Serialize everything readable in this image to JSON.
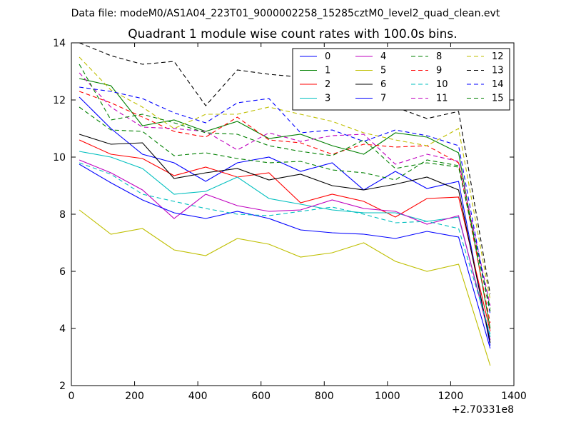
{
  "chart_data": {
    "type": "line",
    "suptitle": "Data file: modeM0/AS1A04_223T01_9000002258_15285cztM0_level2_quad_clean.evt",
    "title": "Quadrant 1 module wise count rates with 100.0s bins.",
    "xlabel": "",
    "ylabel": "",
    "x_offset_label": "+2.70331e8",
    "xlim": [
      0,
      1400
    ],
    "ylim": [
      2,
      14
    ],
    "xticks": [
      0,
      200,
      400,
      600,
      800,
      1000,
      1200,
      1400
    ],
    "yticks": [
      2,
      4,
      6,
      8,
      10,
      12,
      14
    ],
    "x": [
      25,
      125,
      225,
      325,
      425,
      525,
      625,
      725,
      825,
      925,
      1025,
      1125,
      1225,
      1325
    ],
    "series": [
      {
        "name": "0",
        "color": "#0000ff",
        "style": "solid",
        "values": [
          12.1,
          11.0,
          10.1,
          9.8,
          9.15,
          9.8,
          10.0,
          9.5,
          9.8,
          8.85,
          9.5,
          8.9,
          9.15,
          3.4
        ]
      },
      {
        "name": "1",
        "color": "#008000",
        "style": "solid",
        "values": [
          12.75,
          12.5,
          11.1,
          11.3,
          10.9,
          11.25,
          10.65,
          10.8,
          10.4,
          10.1,
          10.85,
          10.7,
          10.15,
          4.0
        ]
      },
      {
        "name": "2",
        "color": "#ff0000",
        "style": "solid",
        "values": [
          10.6,
          10.1,
          9.95,
          9.35,
          9.65,
          9.3,
          9.45,
          8.4,
          8.7,
          8.45,
          7.9,
          8.55,
          8.6,
          3.9
        ]
      },
      {
        "name": "3",
        "color": "#00bfbf",
        "style": "solid",
        "values": [
          10.2,
          10.0,
          9.6,
          8.7,
          8.8,
          9.3,
          8.55,
          8.35,
          8.15,
          8.05,
          8.05,
          7.75,
          7.9,
          3.7
        ]
      },
      {
        "name": "4",
        "color": "#bf00bf",
        "style": "solid",
        "values": [
          9.9,
          9.45,
          8.85,
          7.85,
          8.7,
          8.3,
          8.1,
          8.15,
          8.5,
          8.2,
          8.1,
          7.65,
          7.95,
          3.6
        ]
      },
      {
        "name": "5",
        "color": "#bfbf00",
        "style": "solid",
        "values": [
          8.15,
          7.3,
          7.5,
          6.75,
          6.55,
          7.15,
          6.95,
          6.5,
          6.65,
          7.0,
          6.35,
          6.0,
          6.25,
          2.7
        ]
      },
      {
        "name": "6",
        "color": "#000000",
        "style": "solid",
        "values": [
          10.8,
          10.45,
          10.5,
          9.25,
          9.45,
          9.6,
          9.2,
          9.4,
          9.0,
          8.85,
          9.05,
          9.3,
          8.85,
          3.5
        ]
      },
      {
        "name": "7",
        "color": "#0000ff",
        "style": "solid",
        "values": [
          9.75,
          9.1,
          8.5,
          8.05,
          7.85,
          8.1,
          7.85,
          7.45,
          7.35,
          7.3,
          7.15,
          7.4,
          7.2,
          3.3
        ]
      },
      {
        "name": "8",
        "color": "#008000",
        "style": "dashed",
        "values": [
          11.75,
          10.95,
          10.9,
          10.05,
          10.15,
          9.95,
          9.8,
          9.85,
          9.55,
          9.45,
          9.2,
          9.9,
          9.7,
          4.7
        ]
      },
      {
        "name": "9",
        "color": "#ff0000",
        "style": "dashed",
        "values": [
          12.3,
          11.9,
          11.4,
          10.9,
          10.7,
          11.4,
          10.6,
          10.5,
          10.1,
          10.45,
          10.35,
          10.4,
          9.8,
          4.2
        ]
      },
      {
        "name": "10",
        "color": "#00bfbf",
        "style": "dashed",
        "values": [
          9.8,
          9.4,
          8.7,
          8.45,
          8.2,
          8.0,
          7.95,
          8.1,
          8.25,
          8.0,
          7.7,
          7.75,
          7.5,
          3.8
        ]
      },
      {
        "name": "11",
        "color": "#bf00bf",
        "style": "dashed",
        "values": [
          12.95,
          11.75,
          11.05,
          11.0,
          10.9,
          10.25,
          10.85,
          10.55,
          10.75,
          10.8,
          9.75,
          10.1,
          9.85,
          4.8
        ]
      },
      {
        "name": "12",
        "color": "#bfbf00",
        "style": "dashed",
        "values": [
          13.5,
          12.35,
          11.75,
          11.0,
          11.5,
          11.5,
          11.75,
          11.5,
          11.25,
          10.85,
          10.6,
          10.4,
          11.0,
          5.0
        ]
      },
      {
        "name": "13",
        "color": "#000000",
        "style": "dashed",
        "values": [
          14.0,
          13.55,
          13.25,
          13.35,
          11.8,
          13.05,
          12.9,
          12.8,
          11.8,
          11.8,
          11.75,
          11.35,
          11.6,
          5.2
        ]
      },
      {
        "name": "14",
        "color": "#0000ff",
        "style": "dashed",
        "values": [
          12.45,
          12.3,
          12.05,
          11.55,
          11.2,
          11.9,
          12.05,
          10.85,
          10.95,
          10.55,
          10.95,
          10.75,
          10.4,
          4.5
        ]
      },
      {
        "name": "15",
        "color": "#008000",
        "style": "dashed",
        "values": [
          13.25,
          11.3,
          11.5,
          11.2,
          10.85,
          10.8,
          10.4,
          10.2,
          10.05,
          10.6,
          9.6,
          9.8,
          9.65,
          4.6
        ]
      }
    ],
    "legend_position": "top-right",
    "legend_columns": 4
  }
}
